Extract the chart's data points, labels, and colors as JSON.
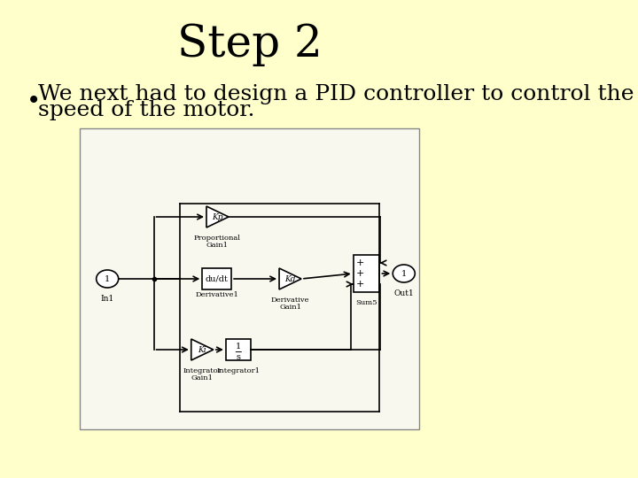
{
  "background_color": "#FFFFCC",
  "title": "Step 2",
  "title_fontsize": 36,
  "title_font": "serif",
  "bullet_text_line1": "We next had to design a PID controller to control the",
  "bullet_text_line2": "speed of the motor.",
  "bullet_fontsize": 18,
  "diagram_bg": "#F5F5F5",
  "diagram_border": "#AAAAAA"
}
